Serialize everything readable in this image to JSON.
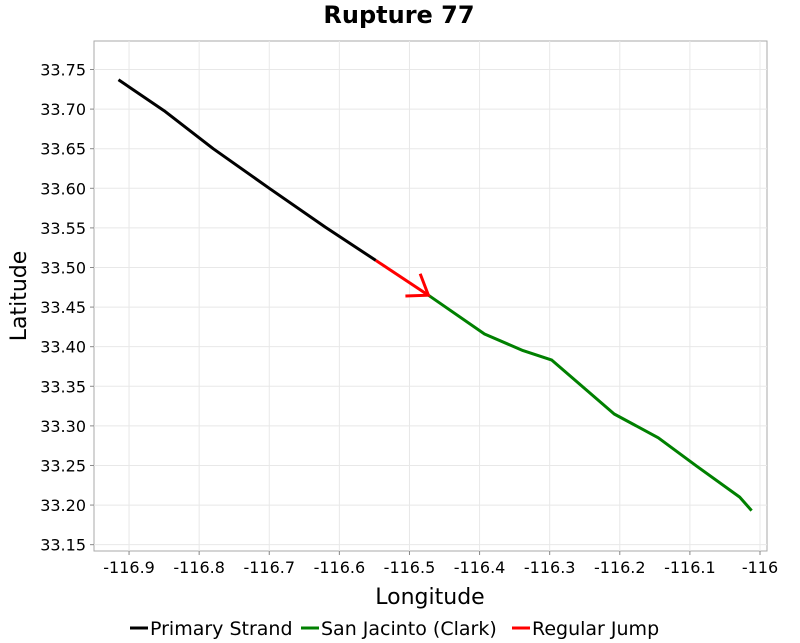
{
  "chart_data": {
    "type": "line",
    "title": "Rupture 77",
    "xlabel": "Longitude",
    "ylabel": "Latitude",
    "xlim": [
      -116.95,
      -115.99
    ],
    "ylim": [
      33.142,
      33.786
    ],
    "x_ticks": [
      -116.9,
      -116.8,
      -116.7,
      -116.6,
      -116.5,
      -116.4,
      -116.3,
      -116.2,
      -116.1,
      -116.0
    ],
    "x_tick_labels": [
      "-116.9",
      "-116.8",
      "-116.7",
      "-116.6",
      "-116.5",
      "-116.4",
      "-116.3",
      "-116.2",
      "-116.1",
      "-116"
    ],
    "y_ticks": [
      33.15,
      33.2,
      33.25,
      33.3,
      33.35,
      33.4,
      33.45,
      33.5,
      33.55,
      33.6,
      33.65,
      33.7,
      33.75
    ],
    "y_tick_labels": [
      "33.15",
      "33.20",
      "33.25",
      "33.30",
      "33.35",
      "33.40",
      "33.45",
      "33.50",
      "33.55",
      "33.60",
      "33.65",
      "33.70",
      "33.75"
    ],
    "grid": true,
    "legend_position": "bottom",
    "series": [
      {
        "name": "Primary Strand",
        "color": "#000000",
        "points": [
          [
            -116.915,
            33.737
          ],
          [
            -116.85,
            33.698
          ],
          [
            -116.78,
            33.65
          ],
          [
            -116.7,
            33.6
          ],
          [
            -116.62,
            33.551
          ],
          [
            -116.548,
            33.509
          ]
        ]
      },
      {
        "name": "San Jacinto (Clark)",
        "color": "#008000",
        "points": [
          [
            -116.473,
            33.465
          ],
          [
            -116.393,
            33.416
          ],
          [
            -116.338,
            33.395
          ],
          [
            -116.297,
            33.383
          ],
          [
            -116.208,
            33.315
          ],
          [
            -116.145,
            33.285
          ],
          [
            -116.09,
            33.249
          ],
          [
            -116.029,
            33.21
          ],
          [
            -116.012,
            33.193
          ]
        ]
      },
      {
        "name": "Regular Jump",
        "color": "#ff0000",
        "points": [
          [
            -116.548,
            33.509
          ],
          [
            -116.473,
            33.465
          ]
        ],
        "arrowhead": true
      }
    ]
  }
}
